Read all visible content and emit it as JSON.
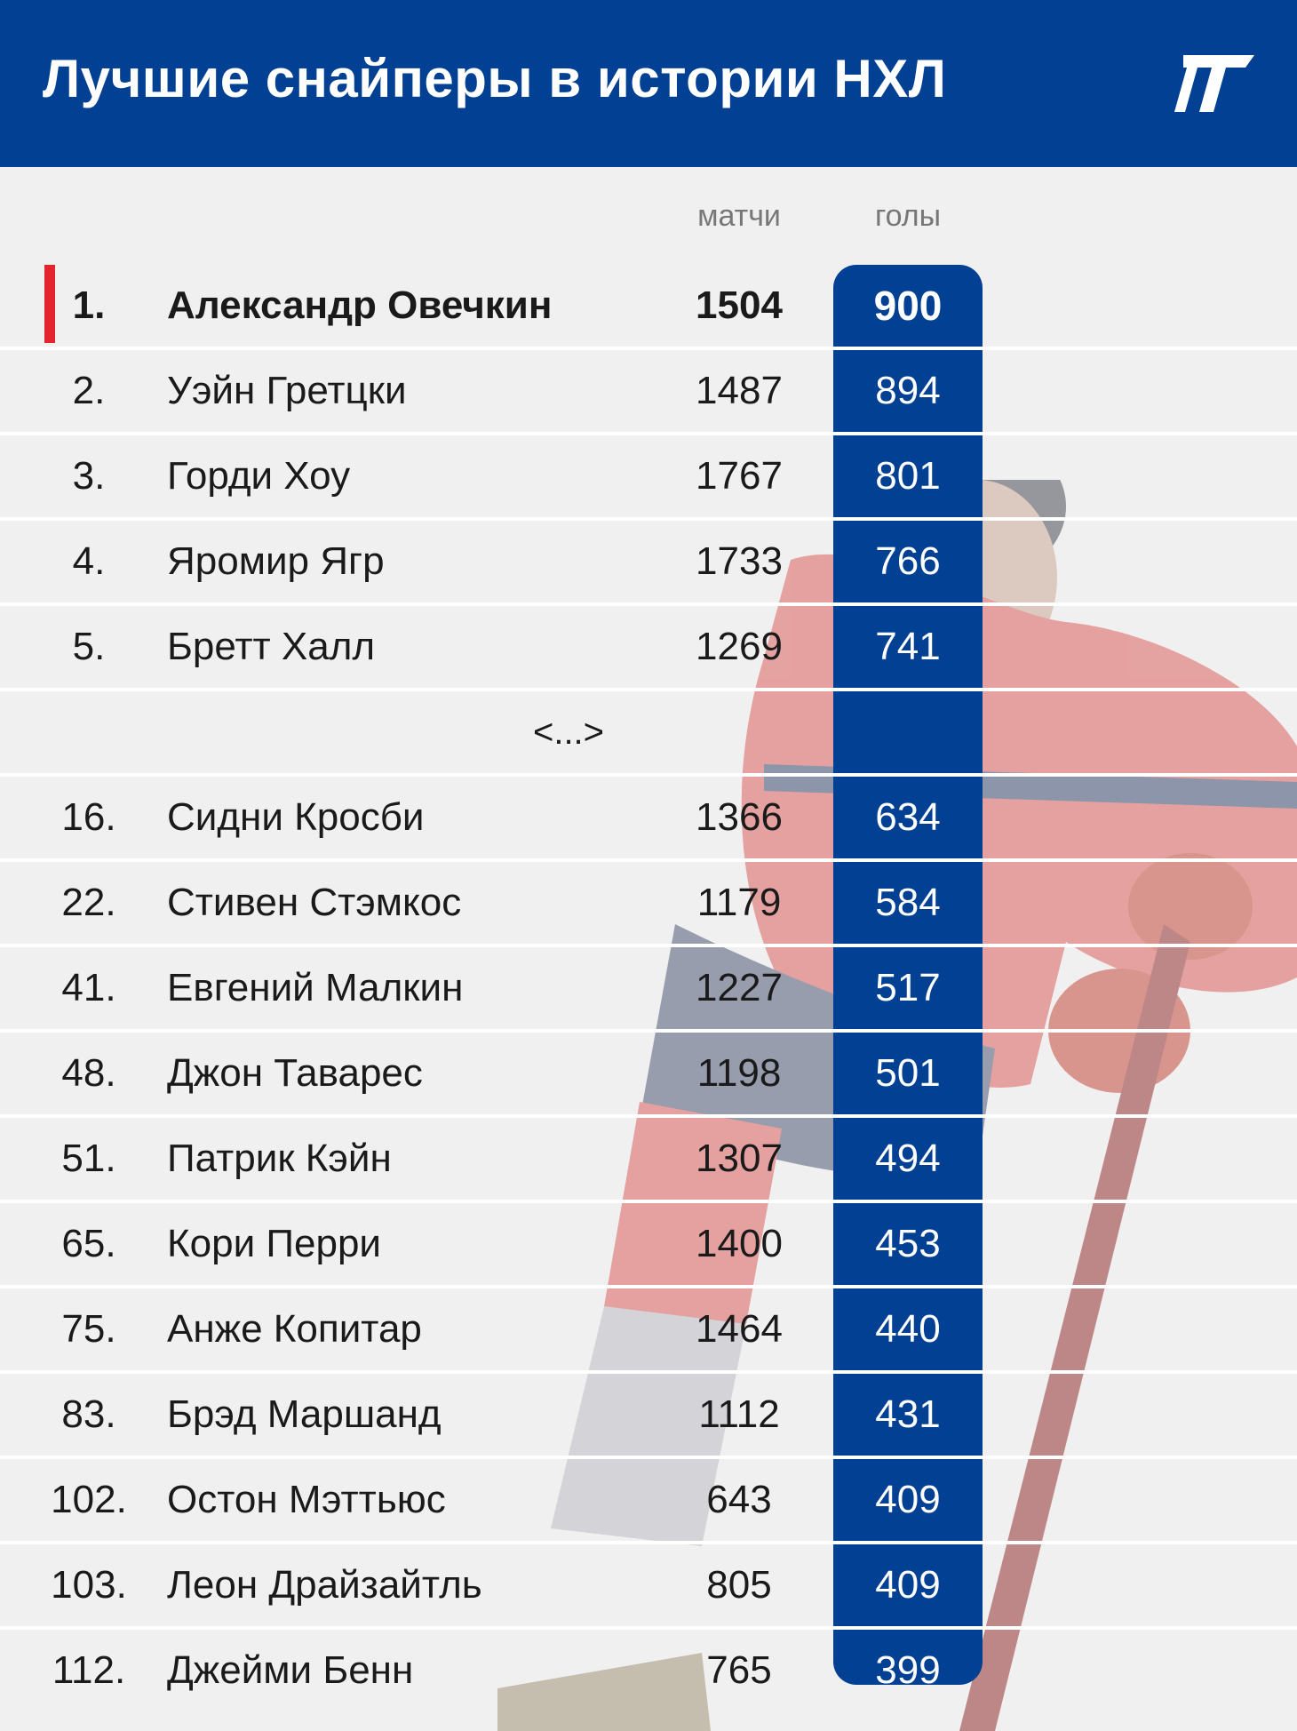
{
  "header": {
    "title": "Лучшие снайперы в истории НХЛ",
    "logo_icon": "slash-logo-icon"
  },
  "columns": {
    "matches": "матчи",
    "goals": "голы"
  },
  "rows": [
    {
      "rank": "1.",
      "name": "Александр Овечкин",
      "matches": "1504",
      "goals": "900",
      "highlight": true
    },
    {
      "rank": "2.",
      "name": "Уэйн Гретцки",
      "matches": "1487",
      "goals": "894"
    },
    {
      "rank": "3.",
      "name": "Горди Хоу",
      "matches": "1767",
      "goals": "801"
    },
    {
      "rank": "4.",
      "name": "Яромир Ягр",
      "matches": "1733",
      "goals": "766"
    },
    {
      "rank": "5.",
      "name": "Бретт Халл",
      "matches": "1269",
      "goals": "741"
    },
    {
      "ellipsis": "<...>"
    },
    {
      "rank": "16.",
      "name": "Сидни Кросби",
      "matches": "1366",
      "goals": "634"
    },
    {
      "rank": "22.",
      "name": "Стивен Стэмкос",
      "matches": "1179",
      "goals": "584"
    },
    {
      "rank": "41.",
      "name": "Евгений Малкин",
      "matches": "1227",
      "goals": "517"
    },
    {
      "rank": "48.",
      "name": "Джон Таварес",
      "matches": "1198",
      "goals": "501"
    },
    {
      "rank": "51.",
      "name": "Патрик Кэйн",
      "matches": "1307",
      "goals": "494"
    },
    {
      "rank": "65.",
      "name": "Кори Перри",
      "matches": "1400",
      "goals": "453"
    },
    {
      "rank": "75.",
      "name": "Анже Копитар",
      "matches": "1464",
      "goals": "440"
    },
    {
      "rank": "83.",
      "name": "Брэд Маршанд",
      "matches": "1112",
      "goals": "431"
    },
    {
      "rank": "102.",
      "name": "Остон Мэттьюс",
      "matches": "643",
      "goals": "409"
    },
    {
      "rank": "103.",
      "name": "Леон Драйзайтль",
      "matches": "805",
      "goals": "409"
    },
    {
      "rank": "112.",
      "name": "Джейми Бенн",
      "matches": "765",
      "goals": "399"
    }
  ],
  "colors": {
    "header_bg": "#024093",
    "accent": "#e3262c",
    "goals_bg": "#024093",
    "page_bg": "#f0f0f0"
  }
}
